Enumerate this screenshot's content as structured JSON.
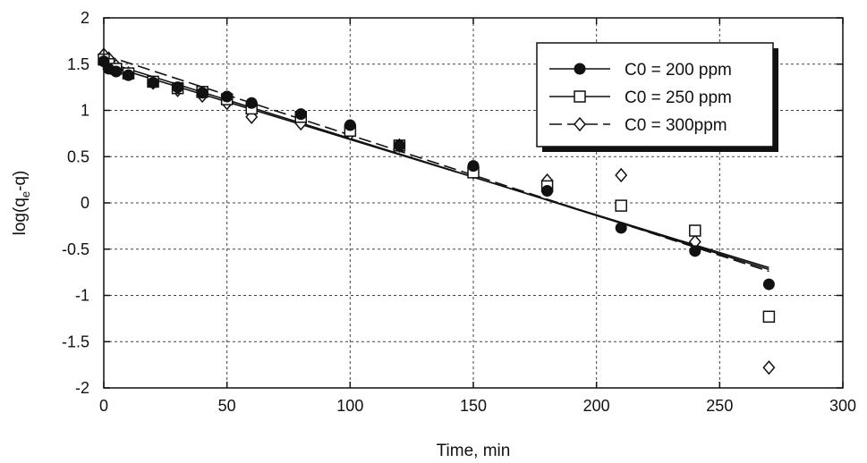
{
  "chart_data": {
    "type": "scatter",
    "title": "",
    "xlabel": "Time, min",
    "ylabel_main": "log(q",
    "ylabel_sub": "e",
    "ylabel_tail": "-q)",
    "xlim": [
      0,
      300
    ],
    "ylim": [
      -2,
      2
    ],
    "x_ticks": [
      "0",
      "50",
      "100",
      "150",
      "200",
      "250",
      "300"
    ],
    "y_ticks": [
      "2",
      "1.5",
      "1",
      "0.5",
      "0",
      "-0.5",
      "-1",
      "-1.5",
      "-2"
    ],
    "grid": true,
    "legend_position": "top-right",
    "series": [
      {
        "name": "C0 = 200 ppm",
        "marker": "filled-circle",
        "line_style": "solid",
        "color": "#111111",
        "points": [
          [
            0,
            1.53
          ],
          [
            2,
            1.45
          ],
          [
            5,
            1.42
          ],
          [
            10,
            1.38
          ],
          [
            20,
            1.3
          ],
          [
            30,
            1.25
          ],
          [
            40,
            1.19
          ],
          [
            50,
            1.15
          ],
          [
            60,
            1.08
          ],
          [
            80,
            0.96
          ],
          [
            100,
            0.84
          ],
          [
            120,
            0.62
          ],
          [
            150,
            0.4
          ],
          [
            180,
            0.13
          ],
          [
            210,
            -0.27
          ],
          [
            240,
            -0.52
          ],
          [
            270,
            -0.88
          ]
        ],
        "fit": [
          [
            0,
            1.5
          ],
          [
            270,
            -0.7
          ]
        ]
      },
      {
        "name": "C0 = 250 ppm",
        "marker": "open-square",
        "line_style": "solid",
        "color": "#111111",
        "points": [
          [
            0,
            1.55
          ],
          [
            2,
            1.5
          ],
          [
            5,
            1.45
          ],
          [
            10,
            1.4
          ],
          [
            20,
            1.31
          ],
          [
            30,
            1.24
          ],
          [
            40,
            1.2
          ],
          [
            50,
            1.12
          ],
          [
            60,
            1.02
          ],
          [
            80,
            0.93
          ],
          [
            100,
            0.78
          ],
          [
            120,
            0.62
          ],
          [
            150,
            0.33
          ],
          [
            180,
            0.18
          ],
          [
            210,
            -0.03
          ],
          [
            240,
            -0.3
          ],
          [
            270,
            -1.23
          ]
        ],
        "fit": [
          [
            0,
            1.53
          ],
          [
            270,
            -0.72
          ]
        ]
      },
      {
        "name": "C0 = 300ppm",
        "marker": "open-diamond",
        "line_style": "dashed",
        "color": "#111111",
        "points": [
          [
            0,
            1.6
          ],
          [
            2,
            1.56
          ],
          [
            5,
            1.48
          ],
          [
            10,
            1.4
          ],
          [
            20,
            1.3
          ],
          [
            30,
            1.22
          ],
          [
            40,
            1.16
          ],
          [
            50,
            1.08
          ],
          [
            60,
            0.93
          ],
          [
            80,
            0.86
          ],
          [
            100,
            0.75
          ],
          [
            120,
            0.62
          ],
          [
            150,
            0.33
          ],
          [
            180,
            0.24
          ],
          [
            210,
            0.3
          ],
          [
            240,
            -0.42
          ],
          [
            270,
            -1.78
          ]
        ],
        "fit": [
          [
            0,
            1.6
          ],
          [
            270,
            -0.74
          ]
        ]
      }
    ]
  }
}
